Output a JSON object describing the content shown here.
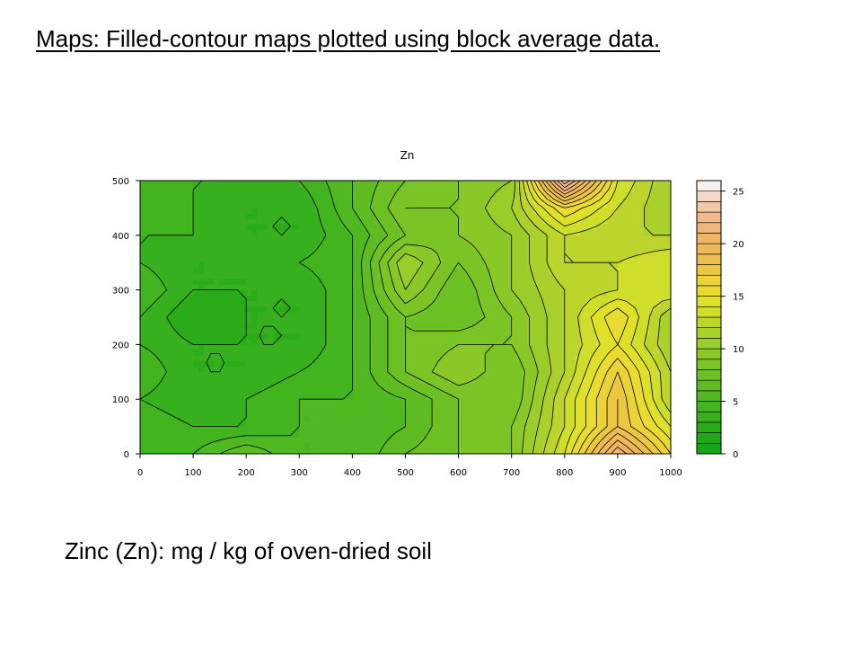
{
  "slide": {
    "title": "Maps: Filled-contour maps plotted using block average data.",
    "caption": "Zinc (Zn): mg / kg of oven-dried soil"
  },
  "chart_data": {
    "type": "heatmap",
    "subtype": "filled-contour map",
    "title": "Zn",
    "xlabel": "",
    "ylabel": "",
    "xlim": [
      0,
      1000
    ],
    "ylim": [
      0,
      500
    ],
    "x_ticks": [
      0,
      100,
      200,
      300,
      400,
      500,
      600,
      700,
      800,
      900,
      1000
    ],
    "y_ticks": [
      0,
      100,
      200,
      300,
      400,
      500
    ],
    "colorbar": {
      "range": [
        0,
        26
      ],
      "ticks": [
        0,
        5,
        10,
        15,
        20,
        25
      ],
      "colors": [
        "#16a516",
        "#20a818",
        "#2aac1a",
        "#36b01c",
        "#42b41e",
        "#50b820",
        "#5ebc22",
        "#6cc024",
        "#7ac426",
        "#8ac828",
        "#9acc2a",
        "#aad02c",
        "#bcd42c",
        "#cede2a",
        "#e0e028",
        "#eadb30",
        "#ecd238",
        "#ecc842",
        "#ecbe4e",
        "#eeb85a",
        "#eeb468",
        "#eeb47a",
        "#f0ba8e",
        "#f2c6a6",
        "#f4d8c8",
        "#f8f0ee"
      ]
    },
    "grid": false,
    "x": [
      0,
      100,
      200,
      300,
      400,
      500,
      600,
      700,
      800,
      900,
      1000
    ],
    "y": [
      0,
      50,
      100,
      150,
      200,
      250,
      300,
      350,
      400,
      450,
      500
    ],
    "z": [
      [
        4,
        5,
        7,
        5,
        5,
        7,
        8,
        9,
        14,
        22,
        16
      ],
      [
        5,
        4,
        4,
        5,
        5,
        6,
        8,
        9,
        13,
        18,
        14
      ],
      [
        4,
        3,
        4,
        5,
        5,
        6,
        8,
        8,
        13,
        18,
        12
      ],
      [
        5,
        3,
        3,
        4,
        5,
        8,
        10,
        8,
        12,
        17,
        12
      ],
      [
        4,
        3,
        3,
        3,
        5,
        8,
        9,
        9,
        12,
        15,
        11
      ],
      [
        4,
        2,
        3,
        3,
        5,
        8,
        7,
        9,
        12,
        16,
        11
      ],
      [
        5,
        3,
        3,
        3,
        5,
        10,
        7,
        10,
        12,
        13,
        14
      ],
      [
        4,
        3,
        3,
        4,
        5,
        11,
        8,
        10,
        13,
        13,
        14
      ],
      [
        4,
        4,
        3,
        3,
        5,
        8,
        9,
        10,
        13,
        12,
        12
      ],
      [
        5,
        4,
        3,
        3,
        6,
        9,
        9,
        11,
        16,
        13,
        11
      ],
      [
        5,
        4,
        4,
        4,
        6,
        8,
        9,
        10,
        24,
        14,
        11
      ]
    ]
  }
}
